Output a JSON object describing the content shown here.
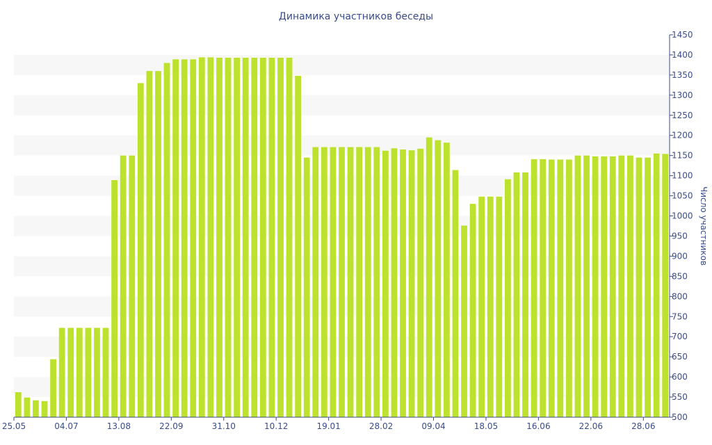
{
  "chart_data": {
    "type": "bar",
    "title": "Динамика участников беседы",
    "ylabel": "Число участников",
    "xlabel": "",
    "ylim": [
      500,
      1450
    ],
    "yticks": [
      500,
      550,
      600,
      650,
      700,
      750,
      800,
      850,
      900,
      950,
      1000,
      1050,
      1100,
      1150,
      1200,
      1250,
      1300,
      1350,
      1400,
      1450
    ],
    "y_axis_position": "right",
    "grid": "horizontal alternating bands",
    "legend": "none",
    "bar_color": "#bde22e",
    "band_color": "#f7f7f7",
    "text_color": "#3a4c8a",
    "x_tick_labels": [
      {
        "index": 0,
        "label": "25.05"
      },
      {
        "index": 6,
        "label": "04.07"
      },
      {
        "index": 12,
        "label": "13.08"
      },
      {
        "index": 18,
        "label": "22.09"
      },
      {
        "index": 24,
        "label": "31.10"
      },
      {
        "index": 30,
        "label": "10.12"
      },
      {
        "index": 36,
        "label": "19.01"
      },
      {
        "index": 42,
        "label": "28.02"
      },
      {
        "index": 48,
        "label": "09.04"
      },
      {
        "index": 54,
        "label": "18.05"
      },
      {
        "index": 60,
        "label": "16.06"
      },
      {
        "index": 66,
        "label": "22.06"
      },
      {
        "index": 72,
        "label": "28.06"
      }
    ],
    "values": [
      562,
      549,
      542,
      540,
      644,
      722,
      722,
      722,
      722,
      722,
      722,
      1089,
      1150,
      1150,
      1330,
      1360,
      1360,
      1380,
      1389,
      1389,
      1389,
      1394,
      1394,
      1393,
      1393,
      1393,
      1393,
      1393,
      1393,
      1393,
      1393,
      1393,
      1348,
      1145,
      1171,
      1171,
      1171,
      1171,
      1171,
      1171,
      1171,
      1171,
      1162,
      1168,
      1165,
      1163,
      1167,
      1195,
      1188,
      1182,
      1114,
      976,
      1030,
      1048,
      1048,
      1048,
      1091,
      1108,
      1108,
      1141,
      1141,
      1140,
      1140,
      1140,
      1150,
      1150,
      1148,
      1148,
      1148,
      1150,
      1150,
      1145,
      1145,
      1155,
      1154
    ]
  }
}
